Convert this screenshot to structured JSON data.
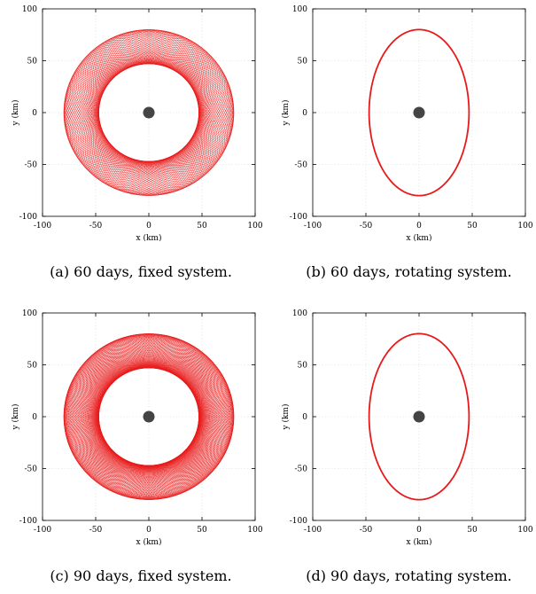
{
  "chart_data": [
    {
      "type": "line",
      "caption": "(a) 60 days, fixed system.",
      "xlabel": "x (km)",
      "ylabel": "y (km)",
      "xlim": [
        -100,
        100
      ],
      "ylim": [
        -100,
        100
      ],
      "xticks": [
        "-100",
        "-50",
        "0",
        "50",
        "100"
      ],
      "yticks": [
        "-100",
        "-50",
        "0",
        "50",
        "100"
      ],
      "grid": true,
      "series": [
        {
          "frame": "fixed",
          "semi_axis_x": 47,
          "semi_axis_y": 80,
          "revolutions": 60,
          "color": "#e8191a"
        }
      ],
      "central_body": {
        "x": 0,
        "y": 0,
        "color": "#444444"
      }
    },
    {
      "type": "line",
      "caption": "(b) 60 days, rotating system.",
      "xlabel": "x (km)",
      "ylabel": "y (km)",
      "xlim": [
        -100,
        100
      ],
      "ylim": [
        -100,
        100
      ],
      "xticks": [
        "-100",
        "-50",
        "0",
        "50",
        "100"
      ],
      "yticks": [
        "-100",
        "-50",
        "0",
        "50",
        "100"
      ],
      "grid": true,
      "series": [
        {
          "frame": "rotating",
          "semi_axis_x": 47,
          "semi_axis_y": 80,
          "revolutions": 60,
          "color": "#e8191a"
        }
      ],
      "central_body": {
        "x": 0,
        "y": 0,
        "color": "#444444"
      }
    },
    {
      "type": "line",
      "caption": "(c) 90 days, fixed system.",
      "xlabel": "x (km)",
      "ylabel": "y (km)",
      "xlim": [
        -100,
        100
      ],
      "ylim": [
        -100,
        100
      ],
      "xticks": [
        "-100",
        "-50",
        "0",
        "50",
        "100"
      ],
      "yticks": [
        "-100",
        "-50",
        "0",
        "50",
        "100"
      ],
      "grid": true,
      "series": [
        {
          "frame": "fixed",
          "semi_axis_x": 47,
          "semi_axis_y": 80,
          "revolutions": 90,
          "color": "#e8191a"
        }
      ],
      "central_body": {
        "x": 0,
        "y": 0,
        "color": "#444444"
      }
    },
    {
      "type": "line",
      "caption": "(d) 90 days, rotating system.",
      "xlabel": "x (km)",
      "ylabel": "y (km)",
      "xlim": [
        -100,
        100
      ],
      "ylim": [
        -100,
        100
      ],
      "xticks": [
        "-100",
        "-50",
        "0",
        "50",
        "100"
      ],
      "yticks": [
        "-100",
        "-50",
        "0",
        "50",
        "100"
      ],
      "grid": true,
      "series": [
        {
          "frame": "rotating",
          "semi_axis_x": 47,
          "semi_axis_y": 80,
          "revolutions": 90,
          "color": "#e8191a"
        }
      ],
      "central_body": {
        "x": 0,
        "y": 0,
        "color": "#444444"
      }
    }
  ]
}
